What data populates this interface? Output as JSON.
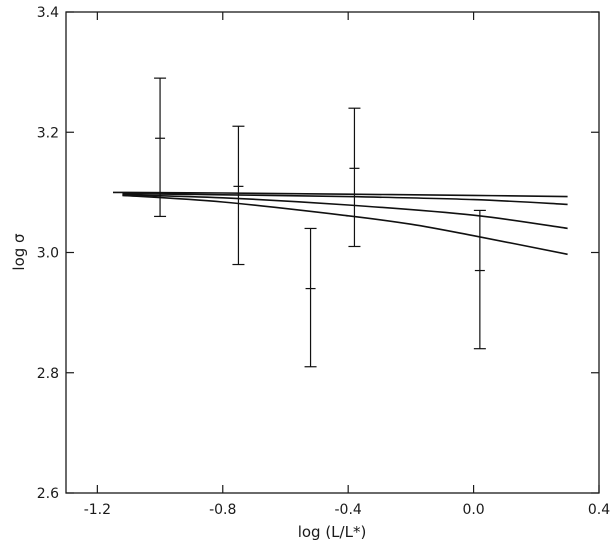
{
  "chart_data": {
    "type": "line",
    "title": "",
    "xlabel": "log (L/L*)",
    "ylabel": "log σ",
    "xlim": [
      -1.3,
      0.4
    ],
    "ylim": [
      2.6,
      3.4
    ],
    "x_ticks": [
      -1.2,
      -0.8,
      -0.4,
      0.0,
      0.4
    ],
    "x_tick_labels": [
      "-1.2",
      "-0.8",
      "-0.4",
      "0.0",
      "0.4"
    ],
    "y_ticks": [
      2.6,
      2.8,
      3.0,
      3.2,
      3.4
    ],
    "y_tick_labels": [
      "2.6",
      "2.8",
      "3.0",
      "3.2",
      "3.4"
    ],
    "grid": false,
    "legend": "none",
    "series": [
      {
        "x": [
          -1.15,
          -0.8,
          -0.4,
          0.0,
          0.3
        ],
        "values": [
          3.1,
          3.099,
          3.097,
          3.095,
          3.093
        ]
      },
      {
        "x": [
          -1.12,
          -0.8,
          -0.4,
          0.0,
          0.3
        ],
        "values": [
          3.098,
          3.096,
          3.093,
          3.088,
          3.08
        ]
      },
      {
        "x": [
          -1.12,
          -0.8,
          -0.4,
          0.0,
          0.3
        ],
        "values": [
          3.096,
          3.091,
          3.079,
          3.062,
          3.04
        ]
      },
      {
        "x": [
          -1.12,
          -0.8,
          -0.4,
          -0.2,
          0.0,
          0.3
        ],
        "values": [
          3.095,
          3.084,
          3.061,
          3.047,
          3.028,
          2.997
        ]
      }
    ],
    "error_bars": [
      {
        "x": -1.0,
        "center": 3.19,
        "low": 3.06,
        "high": 3.29
      },
      {
        "x": -0.75,
        "center": 3.11,
        "low": 2.98,
        "high": 3.21
      },
      {
        "x": -0.52,
        "center": 2.94,
        "low": 2.81,
        "high": 3.04
      },
      {
        "x": -0.38,
        "center": 3.14,
        "low": 3.01,
        "high": 3.24
      },
      {
        "x": 0.02,
        "center": 2.97,
        "low": 2.84,
        "high": 3.07
      }
    ]
  }
}
